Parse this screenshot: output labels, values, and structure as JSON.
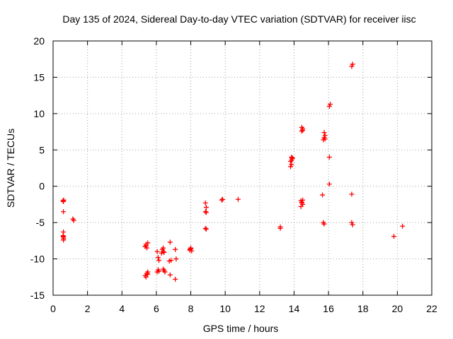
{
  "chart_data": {
    "type": "scatter",
    "title": "Day 135 of 2024, Sidereal Day-to-day VTEC variation (SDTVAR) for receiver iisc",
    "xlabel": "GPS time / hours",
    "ylabel": "SDTVAR / TECUs",
    "xlim": [
      0,
      22
    ],
    "ylim": [
      -15,
      20
    ],
    "xticks": [
      0,
      2,
      4,
      6,
      8,
      10,
      12,
      14,
      16,
      18,
      20,
      22
    ],
    "yticks": [
      -15,
      -10,
      -5,
      0,
      5,
      10,
      15,
      20
    ],
    "xtick_labels": [
      "0",
      "2",
      "4",
      "6",
      "8",
      "10",
      "12",
      "14",
      "16",
      "18",
      "20",
      "22"
    ],
    "ytick_labels": [
      "-15",
      "-10",
      "-5",
      "0",
      "5",
      "10",
      "15",
      "20"
    ],
    "grid": true,
    "marker": "+",
    "color": "#ff0000",
    "series": [
      {
        "name": "SDTVAR",
        "points": [
          [
            0.58,
            -2.0
          ],
          [
            0.6,
            -2.1
          ],
          [
            0.62,
            -1.9
          ],
          [
            0.6,
            -3.5
          ],
          [
            0.6,
            -6.3
          ],
          [
            0.58,
            -6.8
          ],
          [
            0.6,
            -7.0
          ],
          [
            0.62,
            -7.2
          ],
          [
            0.6,
            -6.9
          ],
          [
            0.6,
            -7.4
          ],
          [
            1.15,
            -4.5
          ],
          [
            1.2,
            -4.7
          ],
          [
            5.35,
            -8.3
          ],
          [
            5.4,
            -8.0
          ],
          [
            5.45,
            -8.5
          ],
          [
            5.5,
            -7.8
          ],
          [
            5.4,
            -8.2
          ],
          [
            5.35,
            -12.3
          ],
          [
            5.45,
            -12.0
          ],
          [
            5.5,
            -11.8
          ],
          [
            5.4,
            -12.5
          ],
          [
            5.5,
            -12.1
          ],
          [
            6.05,
            -9.0
          ],
          [
            6.1,
            -9.8
          ],
          [
            6.15,
            -10.2
          ],
          [
            6.1,
            -11.5
          ],
          [
            6.05,
            -11.8
          ],
          [
            6.15,
            -11.7
          ],
          [
            6.3,
            -9.2
          ],
          [
            6.35,
            -8.7
          ],
          [
            6.4,
            -8.5
          ],
          [
            6.4,
            -9.0
          ],
          [
            6.4,
            -11.4
          ],
          [
            6.45,
            -11.6
          ],
          [
            6.5,
            -11.8
          ],
          [
            6.45,
            -9.1
          ],
          [
            6.8,
            -7.7
          ],
          [
            6.75,
            -10.3
          ],
          [
            6.85,
            -10.2
          ],
          [
            6.8,
            -12.2
          ],
          [
            7.1,
            -8.7
          ],
          [
            7.15,
            -10.0
          ],
          [
            7.1,
            -12.8
          ],
          [
            7.95,
            -8.7
          ],
          [
            8.0,
            -8.5
          ],
          [
            8.05,
            -8.9
          ],
          [
            8.0,
            -8.6
          ],
          [
            7.95,
            -8.8
          ],
          [
            8.85,
            -2.3
          ],
          [
            8.9,
            -2.9
          ],
          [
            8.85,
            -3.5
          ],
          [
            8.9,
            -3.6
          ],
          [
            8.85,
            -5.8
          ],
          [
            8.9,
            -5.9
          ],
          [
            9.8,
            -1.9
          ],
          [
            9.85,
            -1.8
          ],
          [
            10.75,
            -1.8
          ],
          [
            13.2,
            -5.6
          ],
          [
            13.2,
            -5.8
          ],
          [
            13.8,
            2.7
          ],
          [
            13.85,
            3.0
          ],
          [
            13.8,
            3.4
          ],
          [
            13.85,
            3.6
          ],
          [
            13.9,
            3.8
          ],
          [
            13.85,
            4.0
          ],
          [
            13.9,
            3.9
          ],
          [
            14.4,
            -2.0
          ],
          [
            14.45,
            -2.2
          ],
          [
            14.5,
            -2.5
          ],
          [
            14.4,
            -2.8
          ],
          [
            14.45,
            -2.3
          ],
          [
            14.5,
            -1.9
          ],
          [
            14.45,
            7.6
          ],
          [
            14.5,
            7.9
          ],
          [
            14.45,
            8.1
          ],
          [
            14.5,
            7.7
          ],
          [
            15.65,
            -1.2
          ],
          [
            15.7,
            -5.0
          ],
          [
            15.75,
            -5.2
          ],
          [
            15.7,
            6.4
          ],
          [
            15.75,
            6.7
          ],
          [
            15.8,
            7.0
          ],
          [
            15.75,
            7.4
          ],
          [
            15.8,
            6.5
          ],
          [
            16.05,
            0.3
          ],
          [
            16.05,
            4.0
          ],
          [
            16.05,
            11.0
          ],
          [
            16.1,
            11.3
          ],
          [
            17.35,
            -1.1
          ],
          [
            17.35,
            -5.0
          ],
          [
            17.4,
            -5.3
          ],
          [
            17.35,
            16.5
          ],
          [
            17.4,
            16.8
          ],
          [
            19.8,
            -6.9
          ],
          [
            20.3,
            -5.5
          ]
        ]
      }
    ]
  }
}
